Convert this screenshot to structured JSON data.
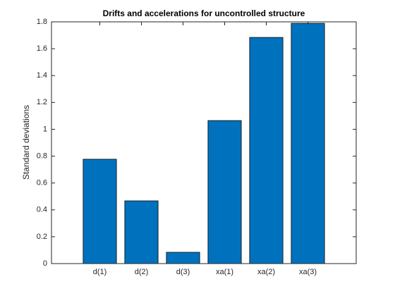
{
  "chart_data": {
    "type": "bar",
    "title": "Drifts and accelerations for uncontrolled structure",
    "y_label": "Standard deviations",
    "categories": [
      "d(1)",
      "d(2)",
      "d(3)",
      "xa(1)",
      "xa(2)",
      "xa(3)"
    ],
    "values": [
      0.777,
      0.467,
      0.084,
      1.065,
      1.684,
      1.789
    ],
    "color": "#0072bd",
    "ylim": [
      0,
      1.8
    ],
    "yticks": [
      0,
      0.2,
      0.4,
      0.6,
      0.8,
      1,
      1.2,
      1.4,
      1.6,
      1.8
    ]
  }
}
